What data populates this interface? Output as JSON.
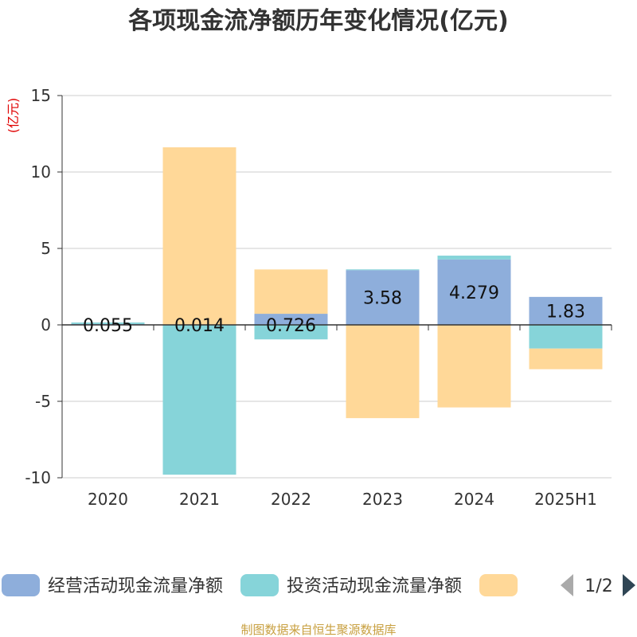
{
  "chart_data": {
    "type": "bar",
    "stacked": true,
    "title": "各项现金流净额历年变化情况(亿元)",
    "ylabel": "(亿元)",
    "ylim": [
      -10,
      15
    ],
    "yticks": [
      15,
      10,
      5,
      0,
      -5,
      -10
    ],
    "categories": [
      "2020",
      "2021",
      "2022",
      "2023",
      "2024",
      "2025H1"
    ],
    "series": [
      {
        "name": "经营活动现金流量净额",
        "color": "#8eaedb",
        "values": [
          0.055,
          0.014,
          0.726,
          3.58,
          4.279,
          1.83
        ],
        "labels": [
          "0.055",
          "0.014",
          "0.726",
          "3.58",
          "4.279",
          "1.83"
        ]
      },
      {
        "name": "投资活动现金流量净额",
        "color": "#86d4d9",
        "values": [
          0.1,
          -9.8,
          -0.95,
          0.05,
          0.25,
          -1.55
        ]
      },
      {
        "name": "",
        "color": "#ffd898",
        "values": [
          0.0,
          11.6,
          2.9,
          -6.1,
          -5.4,
          -1.35
        ]
      }
    ],
    "legend": {
      "page": "1/2",
      "placement": "bottom"
    },
    "source": "制图数据来自恒生聚源数据库"
  }
}
